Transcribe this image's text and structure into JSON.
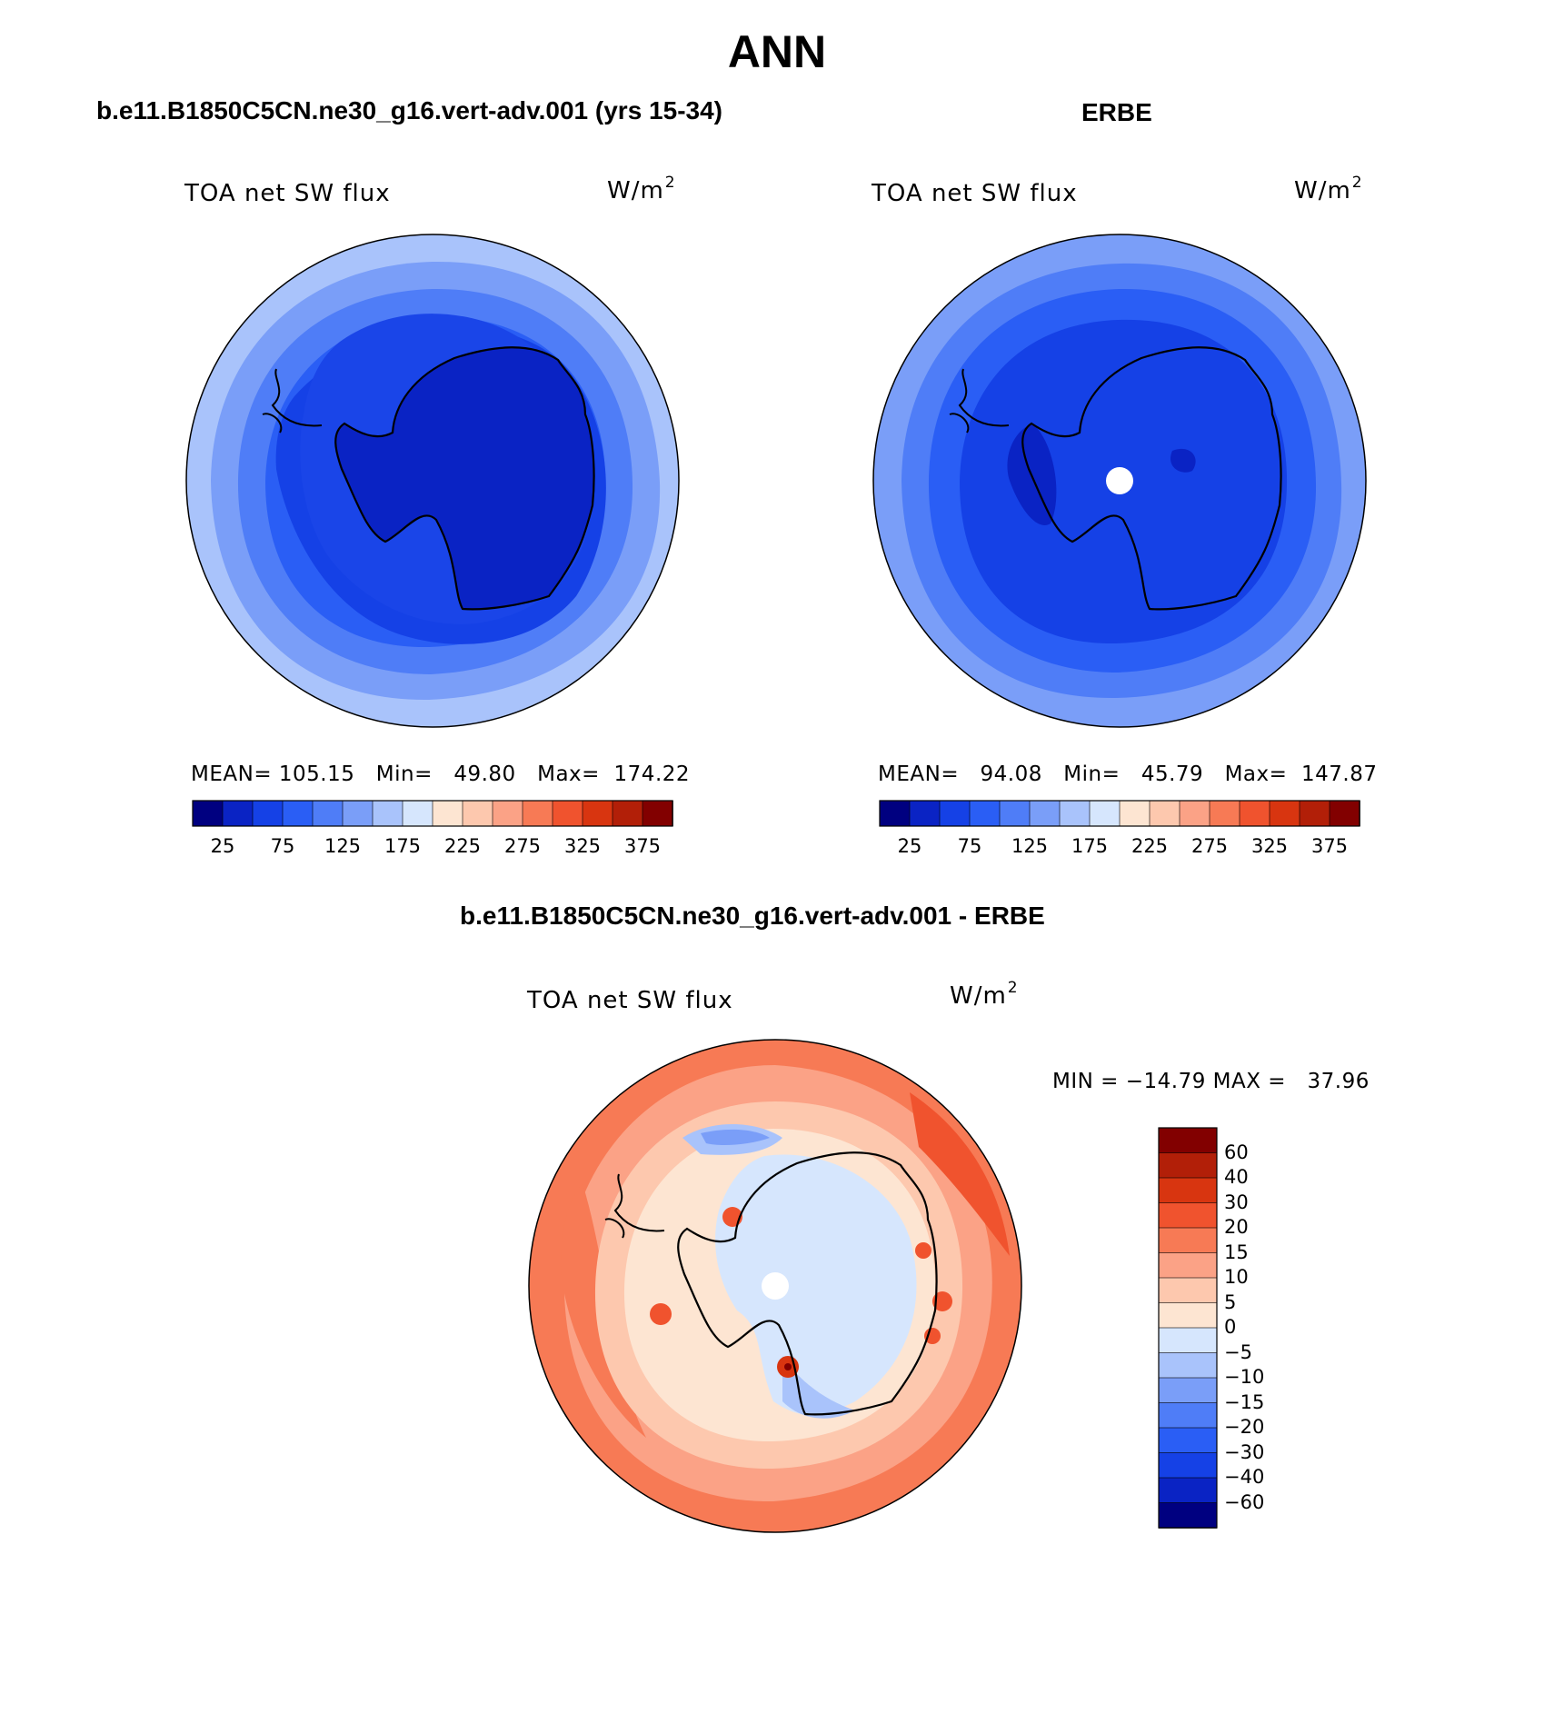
{
  "title": "ANN",
  "panels": [
    {
      "id": "model",
      "subtitle": "b.e11.B1850C5CN.ne30_g16.vert-adv.001 (yrs 15-34)",
      "left_label": "TOA net SW flux",
      "units": "W/m",
      "units_exp": "2",
      "stats": "MEAN= 105.15   Min=   49.80   Max=  174.22",
      "colorbar_ticks": [
        "25",
        "75",
        "125",
        "175",
        "225",
        "275",
        "325",
        "375"
      ]
    },
    {
      "id": "obs",
      "subtitle": "ERBE",
      "left_label": "TOA net SW flux",
      "units": "W/m",
      "units_exp": "2",
      "stats": "MEAN=   94.08   Min=   45.79   Max=  147.87",
      "colorbar_ticks": [
        "25",
        "75",
        "125",
        "175",
        "225",
        "275",
        "325",
        "375"
      ]
    },
    {
      "id": "diff",
      "subtitle": "b.e11.B1850C5CN.ne30_g16.vert-adv.001 - ERBE",
      "left_label": "TOA net SW flux",
      "units": "W/m",
      "units_exp": "2",
      "stats": "MIN = −14.79 MAX =   37.96",
      "colorbar_ticks": [
        "60",
        "40",
        "30",
        "20",
        "15",
        "10",
        "5",
        "0",
        "−5",
        "−10",
        "−15",
        "−20",
        "−30",
        "−40",
        "−60"
      ]
    }
  ],
  "colors": {
    "flux_scale": [
      "#000080",
      "#0a23c4",
      "#1541e6",
      "#2a5ef5",
      "#4f7df7",
      "#7a9ef8",
      "#a9c3fb",
      "#d6e6fd",
      "#fde5d2",
      "#fdc8ae",
      "#fba286",
      "#f77a55",
      "#f0532e",
      "#d83510",
      "#b21f08",
      "#820000"
    ],
    "diff_scale": [
      "#820000",
      "#b21f08",
      "#d83510",
      "#f0532e",
      "#f77a55",
      "#fba286",
      "#fdc8ae",
      "#fde5d2",
      "#d6e6fd",
      "#a9c3fb",
      "#7a9ef8",
      "#4f7df7",
      "#2a5ef5",
      "#1541e6",
      "#0a23c4",
      "#000080"
    ],
    "coastline": "#000000"
  }
}
